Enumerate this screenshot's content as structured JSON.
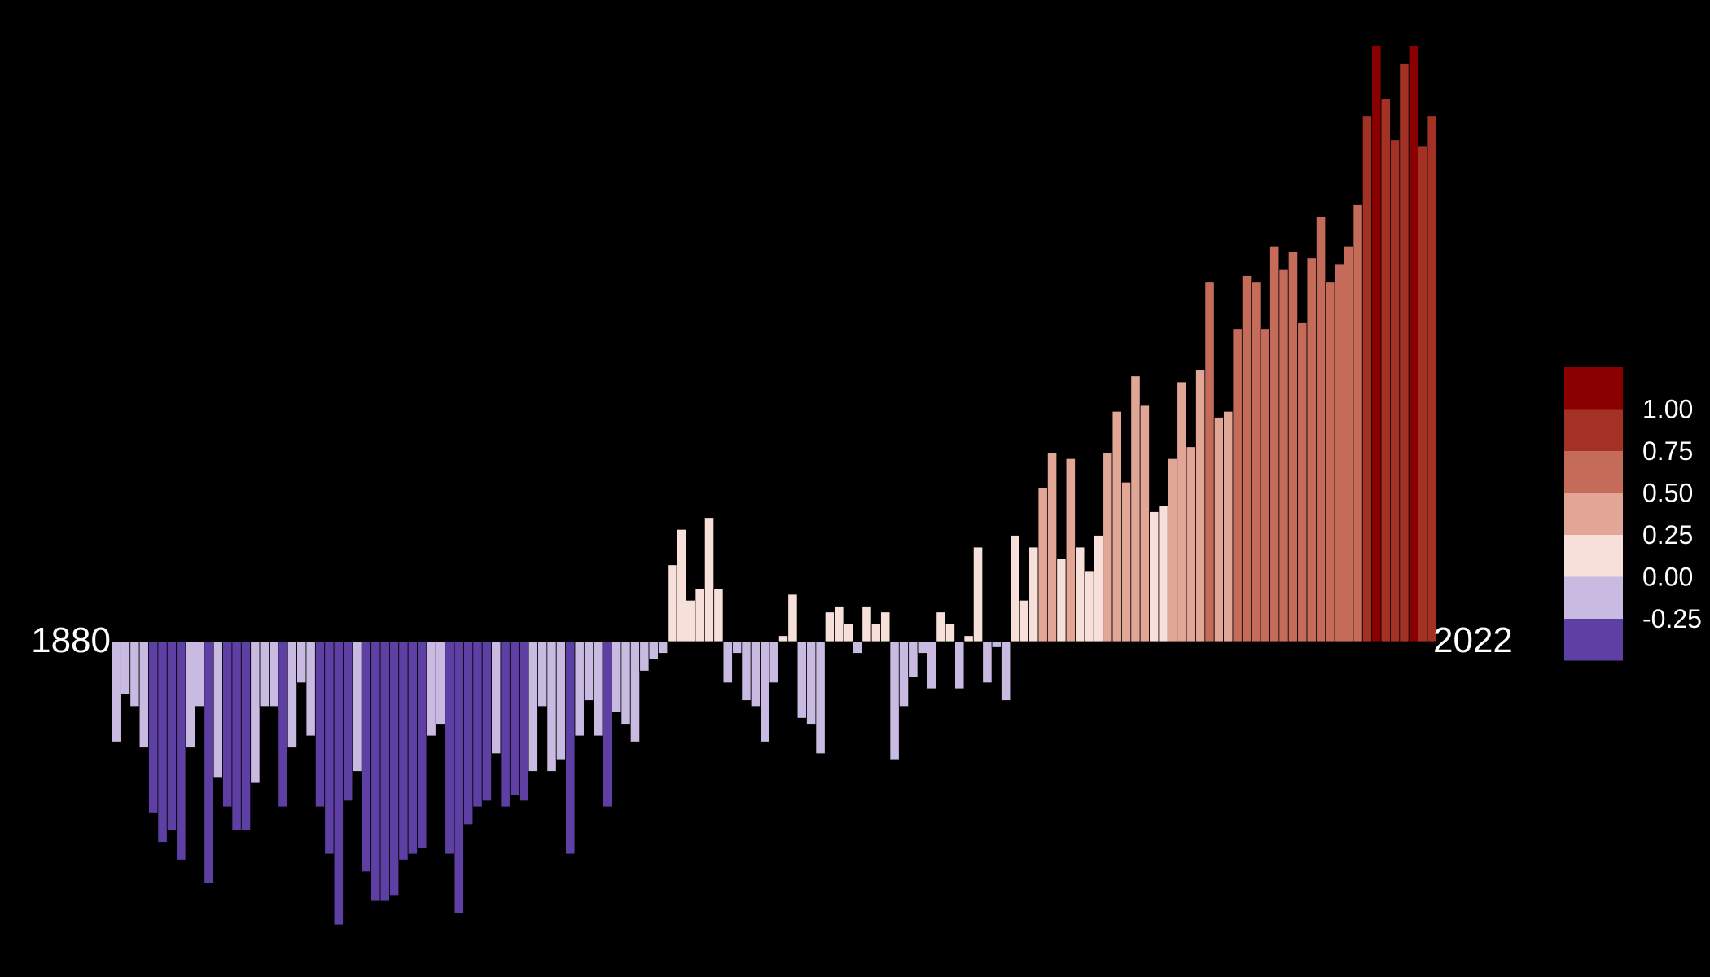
{
  "chart_data": {
    "type": "bar",
    "x_start_label": "1880",
    "x_end_label": "2022",
    "x": [
      1880,
      1881,
      1882,
      1883,
      1884,
      1885,
      1886,
      1887,
      1888,
      1889,
      1890,
      1891,
      1892,
      1893,
      1894,
      1895,
      1896,
      1897,
      1898,
      1899,
      1900,
      1901,
      1902,
      1903,
      1904,
      1905,
      1906,
      1907,
      1908,
      1909,
      1910,
      1911,
      1912,
      1913,
      1914,
      1915,
      1916,
      1917,
      1918,
      1919,
      1920,
      1921,
      1922,
      1923,
      1924,
      1925,
      1926,
      1927,
      1928,
      1929,
      1930,
      1931,
      1932,
      1933,
      1934,
      1935,
      1936,
      1937,
      1938,
      1939,
      1940,
      1941,
      1942,
      1943,
      1944,
      1945,
      1946,
      1947,
      1948,
      1949,
      1950,
      1951,
      1952,
      1953,
      1954,
      1955,
      1956,
      1957,
      1958,
      1959,
      1960,
      1961,
      1962,
      1963,
      1964,
      1965,
      1966,
      1967,
      1968,
      1969,
      1970,
      1971,
      1972,
      1973,
      1974,
      1975,
      1976,
      1977,
      1978,
      1979,
      1980,
      1981,
      1982,
      1983,
      1984,
      1985,
      1986,
      1987,
      1988,
      1989,
      1990,
      1991,
      1992,
      1993,
      1994,
      1995,
      1996,
      1997,
      1998,
      1999,
      2000,
      2001,
      2002,
      2003,
      2004,
      2005,
      2006,
      2007,
      2008,
      2009,
      2010,
      2011,
      2012,
      2013,
      2014,
      2015,
      2016,
      2017,
      2018,
      2019,
      2020,
      2021,
      2022
    ],
    "values": [
      -0.17,
      -0.09,
      -0.11,
      -0.18,
      -0.29,
      -0.34,
      -0.32,
      -0.37,
      -0.18,
      -0.11,
      -0.41,
      -0.23,
      -0.28,
      -0.32,
      -0.32,
      -0.24,
      -0.11,
      -0.11,
      -0.28,
      -0.18,
      -0.07,
      -0.16,
      -0.28,
      -0.36,
      -0.48,
      -0.27,
      -0.22,
      -0.39,
      -0.44,
      -0.44,
      -0.43,
      -0.37,
      -0.36,
      -0.35,
      -0.16,
      -0.14,
      -0.36,
      -0.46,
      -0.31,
      -0.28,
      -0.27,
      -0.19,
      -0.28,
      -0.26,
      -0.27,
      -0.22,
      -0.11,
      -0.22,
      -0.2,
      -0.36,
      -0.16,
      -0.1,
      -0.16,
      -0.28,
      -0.12,
      -0.14,
      -0.17,
      -0.05,
      -0.03,
      -0.02,
      0.13,
      0.19,
      0.07,
      0.09,
      0.21,
      0.09,
      -0.07,
      -0.02,
      -0.1,
      -0.11,
      -0.17,
      -0.07,
      0.01,
      0.08,
      -0.13,
      -0.14,
      -0.19,
      0.05,
      0.06,
      0.03,
      -0.02,
      0.06,
      0.03,
      0.05,
      -0.2,
      -0.11,
      -0.06,
      -0.02,
      -0.08,
      0.05,
      0.03,
      -0.08,
      0.01,
      0.16,
      -0.07,
      -0.01,
      -0.1,
      0.18,
      0.07,
      0.16,
      0.26,
      0.32,
      0.14,
      0.31,
      0.16,
      0.12,
      0.18,
      0.32,
      0.39,
      0.27,
      0.45,
      0.4,
      0.22,
      0.23,
      0.31,
      0.44,
      0.33,
      0.46,
      0.61,
      0.38,
      0.39,
      0.53,
      0.62,
      0.61,
      0.53,
      0.67,
      0.63,
      0.66,
      0.54,
      0.65,
      0.72,
      0.61,
      0.64,
      0.67,
      0.74,
      0.89,
      1.01,
      0.92,
      0.85,
      0.98,
      1.01,
      0.84,
      0.89
    ]
  },
  "legend": {
    "ticks": [
      "1.00",
      "0.75",
      "0.50",
      "0.25",
      "0.00",
      "-0.25"
    ],
    "colors": [
      "#8a0000",
      "#a43224",
      "#c46b5a",
      "#e2a697",
      "#f7e0da",
      "#c8bae1",
      "#5e3fa3"
    ]
  }
}
